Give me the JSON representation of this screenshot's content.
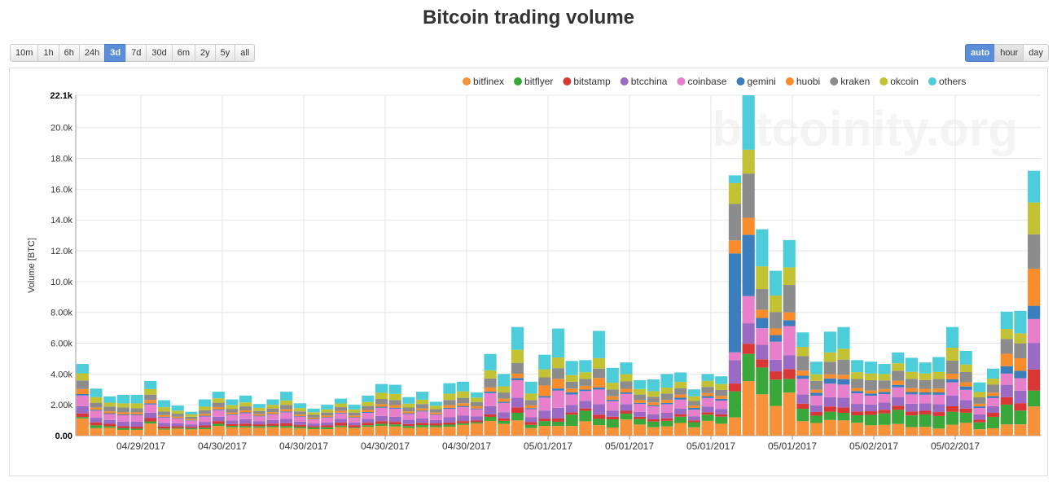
{
  "title": "Bitcoin trading volume",
  "range_buttons": [
    {
      "label": "10m",
      "active": false
    },
    {
      "label": "1h",
      "active": false
    },
    {
      "label": "6h",
      "active": false
    },
    {
      "label": "24h",
      "active": false
    },
    {
      "label": "3d",
      "active": true
    },
    {
      "label": "7d",
      "active": false
    },
    {
      "label": "30d",
      "active": false
    },
    {
      "label": "6m",
      "active": false
    },
    {
      "label": "2y",
      "active": false
    },
    {
      "label": "5y",
      "active": false
    },
    {
      "label": "all",
      "active": false
    }
  ],
  "granularity_buttons": [
    {
      "label": "auto",
      "active": true
    },
    {
      "label": "hour",
      "active": false
    },
    {
      "label": "day",
      "active": false
    }
  ],
  "watermark": "bitcoinity.org",
  "chart_data": {
    "type": "bar",
    "stacked": true,
    "ylabel": "Volume [BTC]",
    "ylim": [
      0,
      22100
    ],
    "y_ticks": [
      "0.00",
      "2.00k",
      "4.00k",
      "6.00k",
      "8.00k",
      "10.0k",
      "12.0k",
      "14.0k",
      "16.0k",
      "18.0k",
      "20.0k",
      "22.1k"
    ],
    "x_ticks": [
      "04/29/2017",
      "04/30/2017",
      "04/30/2017",
      "04/30/2017",
      "04/30/2017",
      "05/01/2017",
      "05/01/2017",
      "05/01/2017",
      "05/01/2017",
      "05/02/2017",
      "05/02/2017"
    ],
    "grid": true,
    "legend_position": "top-right",
    "series": [
      {
        "name": "bitfinex",
        "color": "#f7913a"
      },
      {
        "name": "bitflyer",
        "color": "#3aa73a"
      },
      {
        "name": "bitstamp",
        "color": "#d93636"
      },
      {
        "name": "btcchina",
        "color": "#9b6ac4"
      },
      {
        "name": "coinbase",
        "color": "#e87fcb"
      },
      {
        "name": "gemini",
        "color": "#3b7dbd"
      },
      {
        "name": "huobi",
        "color": "#f98c2b"
      },
      {
        "name": "kraken",
        "color": "#8c8c8c"
      },
      {
        "name": "okcoin",
        "color": "#c2c234"
      },
      {
        "name": "others",
        "color": "#4ccdd9"
      }
    ],
    "totals": [
      4650,
      3050,
      2550,
      2650,
      2650,
      3550,
      2300,
      1950,
      1550,
      2350,
      2850,
      2350,
      2600,
      2050,
      2350,
      2850,
      2100,
      1750,
      2000,
      2400,
      2000,
      2600,
      3350,
      3300,
      2500,
      2850,
      2200,
      3400,
      3500,
      2800,
      5300,
      4000,
      7050,
      3500,
      5250,
      6950,
      4850,
      4900,
      6800,
      4400,
      4750,
      3600,
      3650,
      4000,
      4100,
      3000,
      4000,
      3850,
      16900,
      22100,
      13400,
      10700,
      12700,
      6700,
      4800,
      6750,
      7050,
      4900,
      4800,
      4650,
      5400,
      5050,
      4750,
      5100,
      7050,
      5500,
      3450,
      4350,
      8050,
      8100,
      17200
    ],
    "shares": [
      [
        0.24,
        0.16,
        0.2,
        0.14,
        0.14,
        0.22,
        0.17,
        0.23,
        0.26,
        0.18,
        0.22,
        0.23,
        0.2,
        0.25,
        0.23,
        0.18,
        0.22,
        0.24,
        0.21,
        0.23,
        0.24,
        0.22,
        0.19,
        0.18,
        0.2,
        0.19,
        0.25,
        0.17,
        0.2,
        0.28,
        0.18,
        0.19,
        0.14,
        0.14,
        0.12,
        0.09,
        0.13,
        0.19,
        0.1,
        0.12,
        0.22,
        0.2,
        0.15,
        0.15,
        0.2,
        0.18,
        0.24,
        0.2,
        0.07,
        0.16,
        0.2,
        0.18,
        0.22,
        0.14,
        0.17,
        0.15,
        0.14,
        0.17,
        0.14,
        0.15,
        0.14,
        0.11,
        0.12,
        0.09,
        0.1,
        0.15,
        0.12,
        0.11,
        0.09,
        0.09,
        0.11
      ],
      [
        0.02,
        0.06,
        0.04,
        0.04,
        0.03,
        0.04,
        0.03,
        0.03,
        0.05,
        0.04,
        0.05,
        0.04,
        0.04,
        0.05,
        0.04,
        0.04,
        0.05,
        0.06,
        0.06,
        0.04,
        0.03,
        0.04,
        0.04,
        0.04,
        0.05,
        0.05,
        0.05,
        0.04,
        0.03,
        0.03,
        0.05,
        0.05,
        0.07,
        0.06,
        0.06,
        0.04,
        0.15,
        0.14,
        0.06,
        0.12,
        0.08,
        0.1,
        0.1,
        0.09,
        0.1,
        0.11,
        0.1,
        0.12,
        0.1,
        0.08,
        0.13,
        0.16,
        0.07,
        0.12,
        0.1,
        0.08,
        0.07,
        0.1,
        0.14,
        0.16,
        0.17,
        0.15,
        0.17,
        0.16,
        0.12,
        0.12,
        0.13,
        0.17,
        0.16,
        0.11,
        0.06
      ],
      [
        0.05,
        0.06,
        0.06,
        0.05,
        0.05,
        0.06,
        0.06,
        0.05,
        0.06,
        0.06,
        0.06,
        0.05,
        0.06,
        0.06,
        0.06,
        0.06,
        0.06,
        0.05,
        0.06,
        0.08,
        0.07,
        0.06,
        0.05,
        0.05,
        0.05,
        0.05,
        0.06,
        0.04,
        0.04,
        0.04,
        0.03,
        0.04,
        0.05,
        0.05,
        0.03,
        0.03,
        0.03,
        0.03,
        0.04,
        0.04,
        0.04,
        0.04,
        0.04,
        0.04,
        0.04,
        0.04,
        0.04,
        0.04,
        0.03,
        0.03,
        0.04,
        0.05,
        0.05,
        0.05,
        0.05,
        0.05,
        0.05,
        0.05,
        0.05,
        0.05,
        0.05,
        0.05,
        0.05,
        0.05,
        0.05,
        0.05,
        0.05,
        0.06,
        0.06,
        0.06,
        0.08
      ],
      [
        0.1,
        0.1,
        0.1,
        0.11,
        0.12,
        0.1,
        0.1,
        0.1,
        0.1,
        0.1,
        0.1,
        0.1,
        0.11,
        0.1,
        0.1,
        0.1,
        0.1,
        0.1,
        0.1,
        0.1,
        0.09,
        0.1,
        0.1,
        0.1,
        0.11,
        0.1,
        0.1,
        0.1,
        0.1,
        0.1,
        0.1,
        0.1,
        0.09,
        0.09,
        0.1,
        0.1,
        0.1,
        0.1,
        0.1,
        0.09,
        0.09,
        0.09,
        0.09,
        0.09,
        0.09,
        0.09,
        0.09,
        0.09,
        0.09,
        0.06,
        0.07,
        0.07,
        0.07,
        0.09,
        0.09,
        0.09,
        0.09,
        0.1,
        0.09,
        0.1,
        0.1,
        0.1,
        0.1,
        0.1,
        0.1,
        0.1,
        0.1,
        0.1,
        0.1,
        0.1,
        0.1
      ],
      [
        0.15,
        0.15,
        0.15,
        0.16,
        0.16,
        0.15,
        0.15,
        0.15,
        0.15,
        0.15,
        0.15,
        0.15,
        0.15,
        0.15,
        0.15,
        0.15,
        0.15,
        0.15,
        0.15,
        0.15,
        0.15,
        0.15,
        0.16,
        0.16,
        0.15,
        0.16,
        0.15,
        0.16,
        0.16,
        0.16,
        0.16,
        0.15,
        0.16,
        0.15,
        0.16,
        0.16,
        0.14,
        0.13,
        0.14,
        0.14,
        0.14,
        0.14,
        0.14,
        0.14,
        0.14,
        0.14,
        0.14,
        0.14,
        0.03,
        0.08,
        0.08,
        0.11,
        0.15,
        0.15,
        0.13,
        0.13,
        0.12,
        0.14,
        0.12,
        0.12,
        0.12,
        0.12,
        0.12,
        0.12,
        0.12,
        0.12,
        0.12,
        0.12,
        0.09,
        0.1,
        0.09
      ],
      [
        0.02,
        0.02,
        0.02,
        0.02,
        0.02,
        0.02,
        0.02,
        0.02,
        0.02,
        0.02,
        0.02,
        0.02,
        0.02,
        0.02,
        0.02,
        0.02,
        0.02,
        0.02,
        0.02,
        0.02,
        0.02,
        0.02,
        0.02,
        0.02,
        0.02,
        0.02,
        0.02,
        0.02,
        0.02,
        0.02,
        0.02,
        0.02,
        0.02,
        0.02,
        0.02,
        0.02,
        0.03,
        0.02,
        0.02,
        0.02,
        0.02,
        0.02,
        0.02,
        0.02,
        0.03,
        0.04,
        0.03,
        0.03,
        0.38,
        0.18,
        0.05,
        0.04,
        0.03,
        0.03,
        0.04,
        0.05,
        0.05,
        0.03,
        0.03,
        0.03,
        0.03,
        0.03,
        0.03,
        0.03,
        0.03,
        0.04,
        0.03,
        0.03,
        0.06,
        0.06,
        0.05
      ],
      [
        0.07,
        0.05,
        0.05,
        0.05,
        0.05,
        0.06,
        0.05,
        0.05,
        0.05,
        0.05,
        0.05,
        0.05,
        0.05,
        0.05,
        0.05,
        0.05,
        0.05,
        0.05,
        0.05,
        0.05,
        0.05,
        0.05,
        0.05,
        0.05,
        0.05,
        0.05,
        0.05,
        0.05,
        0.05,
        0.05,
        0.05,
        0.05,
        0.04,
        0.05,
        0.13,
        0.09,
        0.05,
        0.05,
        0.09,
        0.05,
        0.05,
        0.05,
        0.05,
        0.05,
        0.05,
        0.05,
        0.05,
        0.05,
        0.05,
        0.05,
        0.04,
        0.04,
        0.04,
        0.05,
        0.04,
        0.04,
        0.04,
        0.04,
        0.04,
        0.04,
        0.05,
        0.05,
        0.05,
        0.05,
        0.05,
        0.05,
        0.05,
        0.05,
        0.1,
        0.1,
        0.14
      ],
      [
        0.12,
        0.1,
        0.12,
        0.12,
        0.1,
        0.1,
        0.1,
        0.1,
        0.1,
        0.1,
        0.1,
        0.1,
        0.1,
        0.1,
        0.1,
        0.1,
        0.1,
        0.1,
        0.1,
        0.1,
        0.1,
        0.1,
        0.1,
        0.1,
        0.1,
        0.1,
        0.1,
        0.1,
        0.1,
        0.1,
        0.11,
        0.1,
        0.1,
        0.1,
        0.1,
        0.1,
        0.09,
        0.09,
        0.09,
        0.1,
        0.1,
        0.1,
        0.1,
        0.1,
        0.1,
        0.1,
        0.1,
        0.1,
        0.14,
        0.13,
        0.1,
        0.1,
        0.14,
        0.14,
        0.12,
        0.12,
        0.14,
        0.12,
        0.14,
        0.12,
        0.12,
        0.12,
        0.12,
        0.12,
        0.12,
        0.12,
        0.12,
        0.12,
        0.12,
        0.12,
        0.13
      ],
      [
        0.1,
        0.12,
        0.1,
        0.1,
        0.12,
        0.1,
        0.12,
        0.1,
        0.1,
        0.1,
        0.1,
        0.1,
        0.1,
        0.1,
        0.1,
        0.1,
        0.1,
        0.1,
        0.1,
        0.1,
        0.1,
        0.1,
        0.12,
        0.12,
        0.1,
        0.1,
        0.1,
        0.12,
        0.12,
        0.1,
        0.1,
        0.1,
        0.12,
        0.12,
        0.1,
        0.1,
        0.09,
        0.09,
        0.1,
        0.1,
        0.1,
        0.1,
        0.1,
        0.1,
        0.1,
        0.1,
        0.1,
        0.1,
        0.08,
        0.07,
        0.11,
        0.1,
        0.09,
        0.09,
        0.09,
        0.09,
        0.1,
        0.09,
        0.09,
        0.09,
        0.09,
        0.09,
        0.09,
        0.09,
        0.12,
        0.09,
        0.1,
        0.09,
        0.08,
        0.08,
        0.12
      ],
      [
        0.13,
        0.18,
        0.16,
        0.21,
        0.21,
        0.15,
        0.2,
        0.17,
        0.11,
        0.2,
        0.15,
        0.16,
        0.17,
        0.12,
        0.15,
        0.2,
        0.15,
        0.13,
        0.15,
        0.13,
        0.15,
        0.16,
        0.17,
        0.18,
        0.17,
        0.18,
        0.12,
        0.2,
        0.18,
        0.12,
        0.2,
        0.2,
        0.21,
        0.22,
        0.18,
        0.27,
        0.19,
        0.16,
        0.26,
        0.22,
        0.16,
        0.16,
        0.21,
        0.22,
        0.15,
        0.15,
        0.11,
        0.13,
        0.03,
        0.16,
        0.18,
        0.15,
        0.14,
        0.14,
        0.17,
        0.2,
        0.2,
        0.16,
        0.16,
        0.14,
        0.13,
        0.18,
        0.15,
        0.19,
        0.19,
        0.16,
        0.18,
        0.15,
        0.14,
        0.18,
        0.12
      ]
    ]
  }
}
